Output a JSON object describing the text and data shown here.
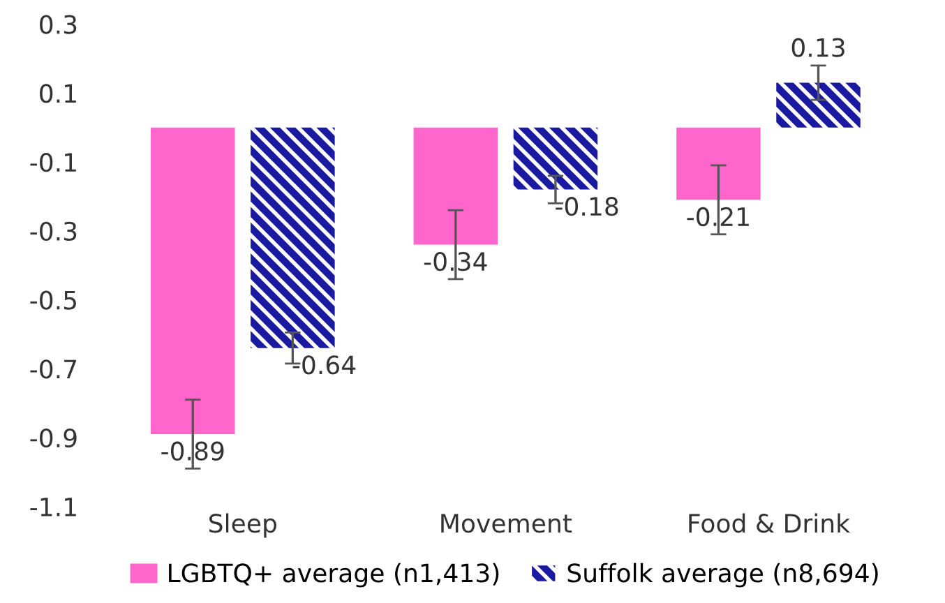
{
  "chart_data": {
    "type": "bar",
    "categories": [
      "Sleep",
      "Movement",
      "Food & Drink"
    ],
    "series": [
      {
        "name": "LGBTQ+ average (n1,413)",
        "color": "#ff66cc",
        "values": [
          -0.89,
          -0.34,
          -0.21
        ],
        "errors": [
          0.1,
          0.1,
          0.1
        ]
      },
      {
        "name": "Suffolk average (n8,694)",
        "color": "#1a1aa0",
        "values": [
          -0.64,
          -0.18,
          0.13
        ],
        "errors": [
          0.045,
          0.04,
          0.05
        ]
      }
    ],
    "ylim": [
      -1.1,
      0.3
    ],
    "yticks": [
      0.3,
      0.1,
      -0.1,
      -0.3,
      -0.5,
      -0.7,
      -0.9,
      -1.1
    ],
    "data_labels": true,
    "grid": false,
    "legend": "bottom"
  }
}
